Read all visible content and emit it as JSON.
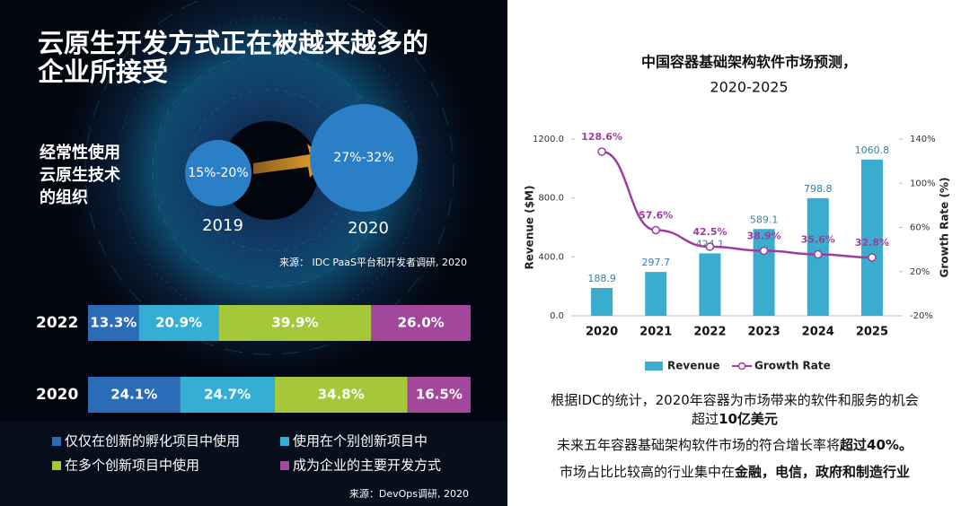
{
  "left": {
    "title_lines": [
      "云原生开发方式正在被越来越多的",
      "企业所接受"
    ],
    "subtitle_lines": [
      "经常性使用",
      "云原生技术",
      "的组织"
    ],
    "circles": [
      {
        "label": "15%-20%",
        "year": "2019"
      },
      {
        "label": "27%-32%",
        "year": "2020"
      }
    ],
    "source_top": "来源： IDC PaaS平台和开发者调研, 2020",
    "source_bottom": "来源：DevOps调研, 2020"
  },
  "chart_data": [
    {
      "type": "stacked_bar",
      "categories": [
        "2022",
        "2020"
      ],
      "series": [
        {
          "name": "仅仅在创新的孵化项目中使用",
          "color": "#2b6cb8",
          "values": [
            13.3,
            24.1
          ],
          "value_labels": [
            "13.3%",
            "24.1%"
          ]
        },
        {
          "name": "使用在个别创新项目中",
          "color": "#35aed6",
          "values": [
            20.9,
            24.7
          ],
          "value_labels": [
            "20.9%",
            "24.7%"
          ]
        },
        {
          "name": "在多个创新项目中使用",
          "color": "#a5c83a",
          "values": [
            39.9,
            34.8
          ],
          "value_labels": [
            "39.9%",
            "34.8%"
          ]
        },
        {
          "name": "成为企业的主要开发方式",
          "color": "#a2479b",
          "values": [
            26.0,
            16.5
          ],
          "value_labels": [
            "26.0%",
            "16.5%"
          ]
        }
      ]
    },
    {
      "type": "bar_line",
      "title_lines": [
        "中国容器基础架构软件市场预测，",
        "2020-2025"
      ],
      "categories": [
        "2020",
        "2021",
        "2022",
        "2023",
        "2024",
        "2025"
      ],
      "y_label": "Revenue ($M)",
      "y2_label": "Growth Rate (%)",
      "ylim": [
        0,
        1200
      ],
      "yticks": [
        {
          "value": 0,
          "label": "0.0"
        },
        {
          "value": 400,
          "label": "400.0"
        },
        {
          "value": 800,
          "label": "800.0"
        },
        {
          "value": 1200,
          "label": "1200.0"
        }
      ],
      "y2lim": [
        -20,
        140
      ],
      "y2ticks": [
        {
          "value": -20,
          "label": "-20%"
        },
        {
          "value": 20,
          "label": "20%"
        },
        {
          "value": 60,
          "label": "60%"
        },
        {
          "value": 100,
          "label": "100%"
        },
        {
          "value": 140,
          "label": "140%"
        }
      ],
      "series": [
        {
          "name": "Revenue",
          "kind": "bar",
          "color": "#3aaccd",
          "values": [
            188.9,
            297.7,
            424.1,
            589.1,
            798.8,
            1060.8
          ]
        },
        {
          "name": "Growth Rate",
          "kind": "line",
          "axis": "y2",
          "color": "#a13c9f",
          "values": [
            128.6,
            57.6,
            42.5,
            38.9,
            35.6,
            32.8
          ],
          "value_labels": [
            "128.6%",
            "57.6%",
            "42.5%",
            "38.9%",
            "35.6%",
            "32.8%"
          ]
        }
      ]
    }
  ],
  "notes": [
    [
      {
        "text": "根据IDC的统计，2020年容器为市场带来的软件和服务的机会",
        "bold": false
      }
    ],
    [
      {
        "text": "超过",
        "bold": false
      },
      {
        "text": "10亿美元",
        "bold": true
      }
    ],
    [
      {
        "text": "未来五年容器基础架构软件市场的符合增长率将",
        "bold": false
      },
      {
        "text": "超过40%。",
        "bold": true
      }
    ],
    [
      {
        "text": "市场占比比较高的行业集中在",
        "bold": false
      },
      {
        "text": "金融，电信，政府和制造行业",
        "bold": true
      }
    ]
  ]
}
